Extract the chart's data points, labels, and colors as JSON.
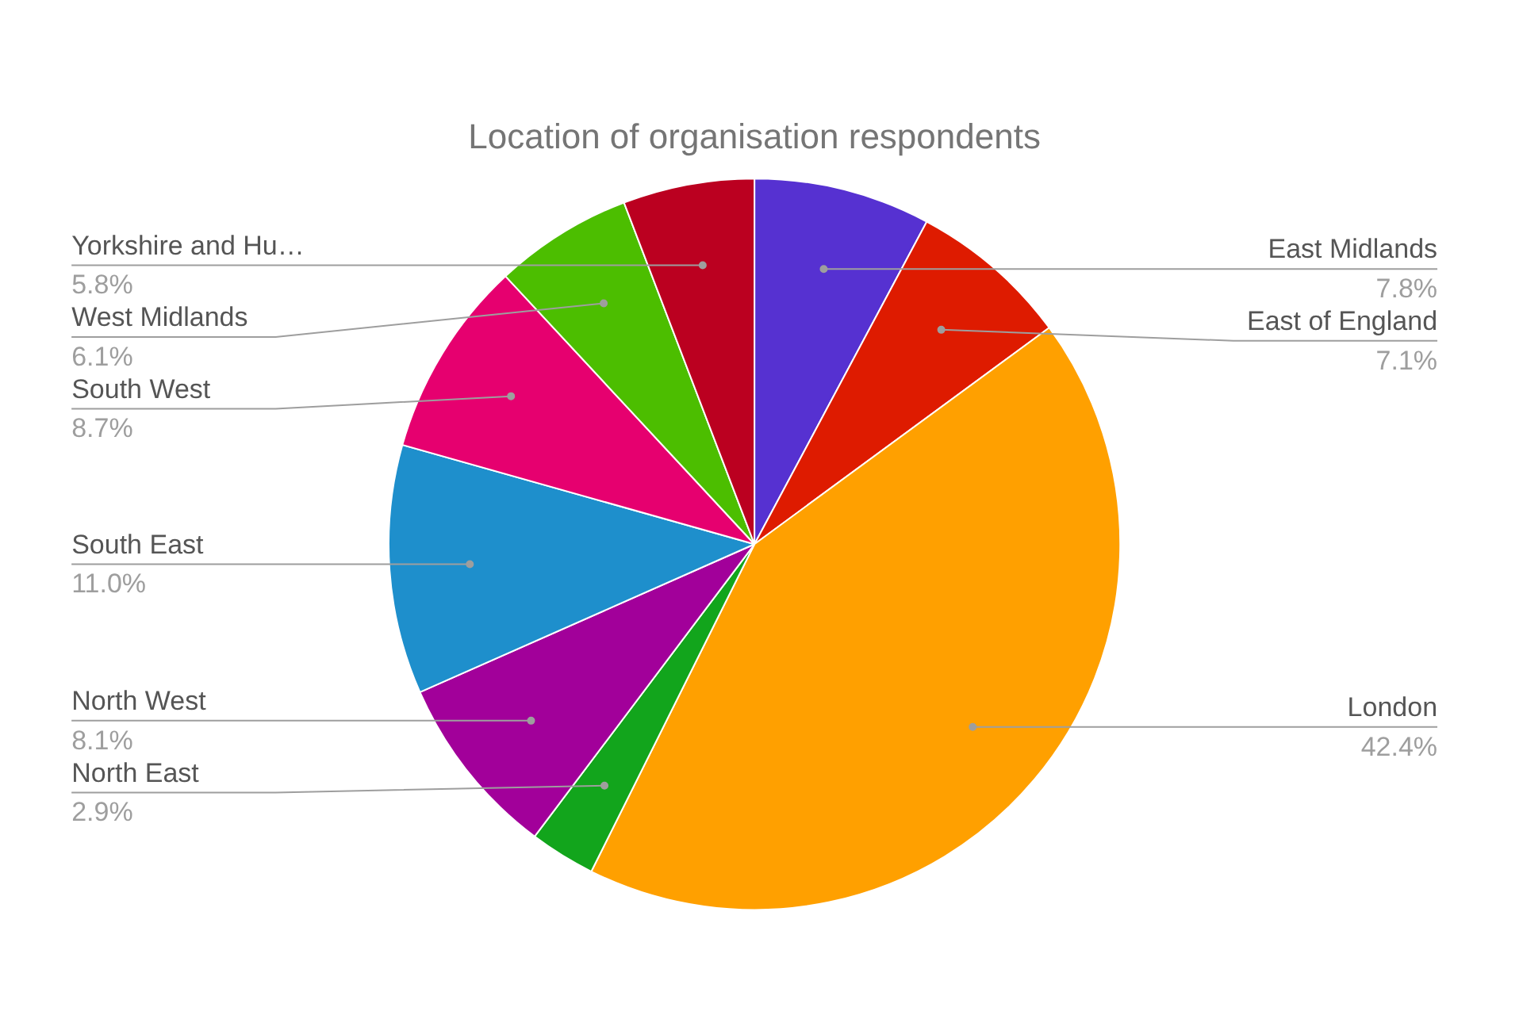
{
  "chart_data": {
    "type": "pie",
    "title": "Location of organisation respondents",
    "categories": [
      "East Midlands",
      "East of England",
      "London",
      "North East",
      "North West",
      "South East",
      "South West",
      "West Midlands",
      "Yorkshire and Hu…"
    ],
    "values": [
      7.8,
      7.1,
      42.4,
      2.9,
      8.1,
      11.0,
      8.7,
      6.1,
      5.8
    ],
    "colors": [
      "#5631d1",
      "#de1b00",
      "#ffa000",
      "#12a51c",
      "#a2009a",
      "#1e8fcc",
      "#e6006f",
      "#4cbe00",
      "#bb0020"
    ],
    "value_labels": [
      "7.8%",
      "7.1%",
      "42.4%",
      "2.9%",
      "8.1%",
      "11.0%",
      "8.7%",
      "6.1%",
      "5.8%"
    ]
  }
}
